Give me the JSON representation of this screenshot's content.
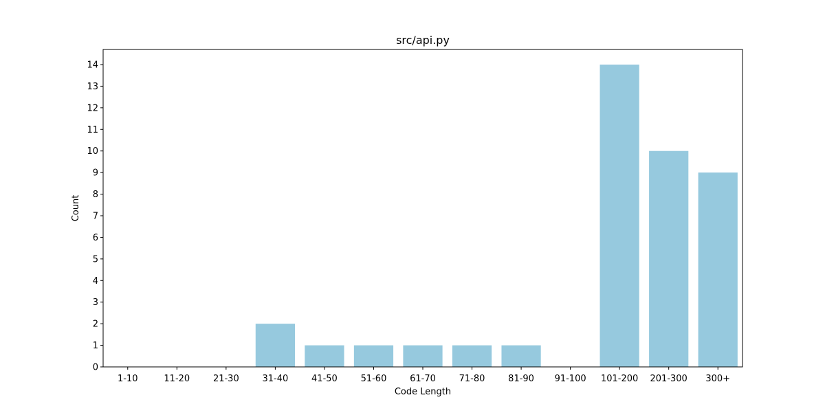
{
  "chart_data": {
    "type": "bar",
    "title": "src/api.py",
    "xlabel": "Code Length",
    "ylabel": "Count",
    "categories": [
      "1-10",
      "11-20",
      "21-30",
      "31-40",
      "41-50",
      "51-60",
      "61-70",
      "71-80",
      "81-90",
      "91-100",
      "101-200",
      "201-300",
      "300+"
    ],
    "values": [
      0,
      0,
      0,
      2,
      1,
      1,
      1,
      1,
      1,
      0,
      14,
      10,
      9
    ],
    "ylim": [
      0,
      14.7
    ],
    "yticks": [
      0,
      1,
      2,
      3,
      4,
      5,
      6,
      7,
      8,
      9,
      10,
      11,
      12,
      13,
      14
    ],
    "bar_color": "#96c9de",
    "grid": false,
    "legend": false
  }
}
